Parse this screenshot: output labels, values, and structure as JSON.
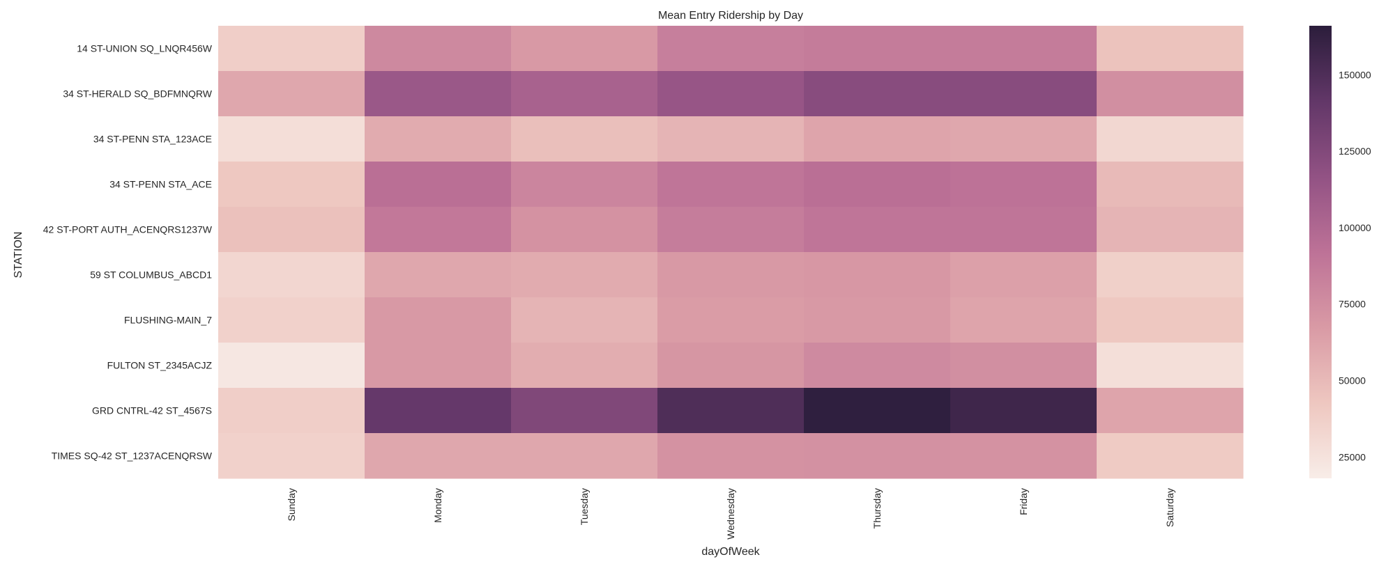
{
  "chart_data": {
    "type": "heatmap",
    "title": "Mean Entry Ridership by Day",
    "xlabel": "dayOfWeek",
    "ylabel": "STATION",
    "x_categories": [
      "Sunday",
      "Monday",
      "Tuesday",
      "Wednesday",
      "Thursday",
      "Friday",
      "Saturday"
    ],
    "y_categories": [
      "14 ST-UNION SQ_LNQR456W",
      "34 ST-HERALD SQ_BDFMNQRW",
      "34 ST-PENN STA_123ACE",
      "34 ST-PENN STA_ACE",
      "42 ST-PORT AUTH_ACENQRS1237W",
      "59 ST COLUMBUS_ABCD1",
      "FLUSHING-MAIN_7",
      "FULTON ST_2345ACJZ",
      "GRD CNTRL-42 ST_4567S",
      "TIMES SQ-42 ST_1237ACENQRSW"
    ],
    "values": [
      [
        38000,
        78000,
        68000,
        84000,
        86000,
        86000,
        45000
      ],
      [
        60000,
        112000,
        104000,
        114000,
        122000,
        122000,
        74000
      ],
      [
        28000,
        58000,
        47000,
        53000,
        62000,
        60000,
        32000
      ],
      [
        42000,
        94000,
        80000,
        90000,
        94000,
        92000,
        50000
      ],
      [
        46000,
        88000,
        72000,
        85000,
        90000,
        90000,
        53000
      ],
      [
        33000,
        60000,
        58000,
        68000,
        69000,
        64000,
        37000
      ],
      [
        36000,
        68000,
        53000,
        66000,
        68000,
        62000,
        42000
      ],
      [
        22000,
        68000,
        57000,
        70000,
        77000,
        74000,
        27000
      ],
      [
        38000,
        140000,
        126000,
        150000,
        164000,
        157000,
        62000
      ],
      [
        36000,
        60000,
        60000,
        72000,
        73000,
        72000,
        40000
      ]
    ],
    "colorbar": {
      "vmin": 18000,
      "vmax": 166000,
      "ticks": [
        25000,
        50000,
        75000,
        100000,
        125000,
        150000
      ],
      "colors": [
        "#f8ede8",
        "#eec7c0",
        "#d99aa5",
        "#bd7297",
        "#925284",
        "#623768",
        "#2b1d3b"
      ]
    }
  }
}
